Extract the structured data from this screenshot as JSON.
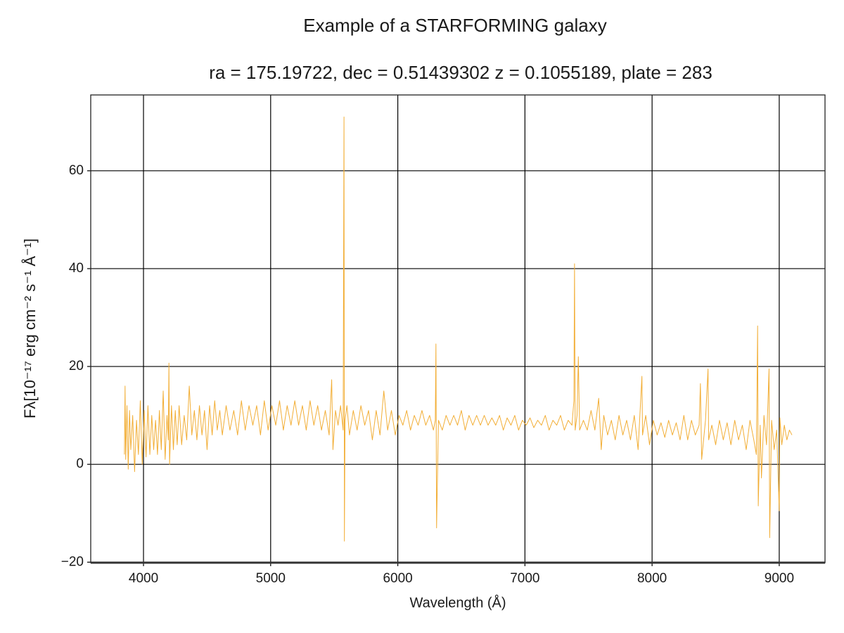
{
  "chart_data": {
    "type": "line",
    "title": "Example of a STARFORMING galaxy",
    "subtitle": "ra = 175.19722, dec = 0.51439302 z = 0.1055189, plate = 283",
    "xlabel": "Wavelength (Å)",
    "ylabel": "Fλ[10⁻¹⁷ erg cm⁻² s⁻¹ Å⁻¹]",
    "color": "#f2ae36",
    "grid": true,
    "xlim": [
      3585,
      9360
    ],
    "ylim": [
      -20.1,
      75.5
    ],
    "xticks": [
      4000,
      5000,
      6000,
      7000,
      8000,
      9000
    ],
    "yticks": [
      {
        "value": -20,
        "label": "−20"
      },
      0,
      20,
      40,
      60
    ],
    "x": [
      3850,
      3855,
      3860,
      3870,
      3880,
      3890,
      3900,
      3915,
      3930,
      3945,
      3960,
      3975,
      3990,
      4005,
      4020,
      4035,
      4050,
      4065,
      4080,
      4095,
      4110,
      4125,
      4140,
      4155,
      4170,
      4185,
      4195,
      4200,
      4205,
      4220,
      4235,
      4250,
      4265,
      4280,
      4300,
      4320,
      4340,
      4360,
      4380,
      4400,
      4420,
      4440,
      4460,
      4480,
      4500,
      4520,
      4540,
      4560,
      4580,
      4600,
      4620,
      4650,
      4680,
      4710,
      4740,
      4770,
      4800,
      4830,
      4860,
      4890,
      4920,
      4950,
      4980,
      5010,
      5040,
      5070,
      5100,
      5130,
      5160,
      5190,
      5220,
      5250,
      5280,
      5310,
      5340,
      5370,
      5400,
      5430,
      5460,
      5480,
      5490,
      5510,
      5530,
      5550,
      5570,
      5577,
      5580,
      5585,
      5600,
      5620,
      5650,
      5680,
      5710,
      5740,
      5770,
      5800,
      5830,
      5860,
      5890,
      5920,
      5950,
      5980,
      6010,
      6040,
      6070,
      6100,
      6130,
      6160,
      6190,
      6220,
      6250,
      6280,
      6295,
      6300,
      6305,
      6320,
      6350,
      6380,
      6410,
      6440,
      6470,
      6500,
      6530,
      6560,
      6590,
      6620,
      6650,
      6680,
      6710,
      6740,
      6770,
      6800,
      6830,
      6860,
      6890,
      6920,
      6950,
      6980,
      7010,
      7040,
      7070,
      7100,
      7130,
      7160,
      7190,
      7220,
      7250,
      7280,
      7310,
      7340,
      7370,
      7385,
      7390,
      7395,
      7410,
      7420,
      7430,
      7460,
      7490,
      7520,
      7550,
      7580,
      7600,
      7620,
      7650,
      7680,
      7710,
      7740,
      7770,
      7800,
      7830,
      7860,
      7890,
      7920,
      7925,
      7950,
      7980,
      8010,
      8040,
      8070,
      8100,
      8130,
      8160,
      8190,
      8220,
      8250,
      8280,
      8310,
      8340,
      8370,
      8380,
      8390,
      8420,
      8440,
      8445,
      8470,
      8500,
      8530,
      8560,
      8590,
      8620,
      8650,
      8680,
      8710,
      8740,
      8770,
      8800,
      8820,
      8830,
      8835,
      8850,
      8860,
      8880,
      8900,
      8920,
      8925,
      8940,
      8960,
      8980,
      9000,
      9005,
      9020,
      9040,
      9060,
      9080,
      9100
    ],
    "values": [
      2,
      16,
      1,
      12,
      -1,
      11,
      3,
      10,
      -1.5,
      9,
      2,
      13,
      0,
      11,
      1.5,
      12,
      2,
      10,
      3,
      9,
      2,
      11,
      3,
      15,
      1,
      10,
      5,
      20.7,
      0,
      12,
      3,
      11,
      4,
      12,
      4,
      10,
      5,
      16,
      6,
      11,
      5,
      12,
      6,
      11,
      3,
      12,
      6,
      13,
      7,
      11,
      6,
      12,
      7,
      11,
      6,
      13,
      7,
      12,
      8,
      12,
      6,
      13,
      7,
      12,
      8,
      13,
      7,
      12,
      8,
      13,
      8,
      12,
      7,
      13,
      8,
      12,
      7,
      11,
      6,
      17.3,
      3,
      11,
      8,
      12,
      7,
      71,
      -15.7,
      9,
      12,
      6,
      11,
      7,
      12,
      8,
      11,
      5,
      11,
      6,
      15,
      7,
      11,
      6,
      10,
      8,
      11,
      7,
      10,
      8,
      11,
      8,
      10,
      7,
      9,
      24.6,
      -13,
      9,
      7,
      10,
      8,
      10,
      8,
      11,
      7,
      10,
      8,
      10,
      8,
      10,
      8,
      9.5,
      8,
      10,
      7,
      9.5,
      8,
      10,
      7,
      9,
      8,
      9.5,
      7.5,
      9,
      8,
      10,
      7,
      9,
      8,
      10,
      7,
      9,
      8,
      13,
      41,
      7,
      10,
      22,
      7,
      9,
      7,
      11,
      7,
      13.5,
      3,
      10,
      6,
      9,
      5,
      10,
      6,
      9,
      5,
      10,
      3,
      18,
      6,
      10,
      4,
      9,
      6,
      8.5,
      5.5,
      9,
      6,
      8.5,
      5,
      10,
      5,
      9,
      6,
      8,
      16.5,
      1,
      9,
      19.5,
      5,
      8,
      4,
      9,
      5,
      8.5,
      4,
      9,
      5,
      8,
      3,
      9,
      5,
      2,
      28.3,
      -8.5,
      8,
      -2.8,
      10,
      4,
      19.5,
      -15,
      9,
      3,
      7,
      -9.5,
      9.5,
      4,
      8,
      5,
      7,
      6
    ]
  }
}
